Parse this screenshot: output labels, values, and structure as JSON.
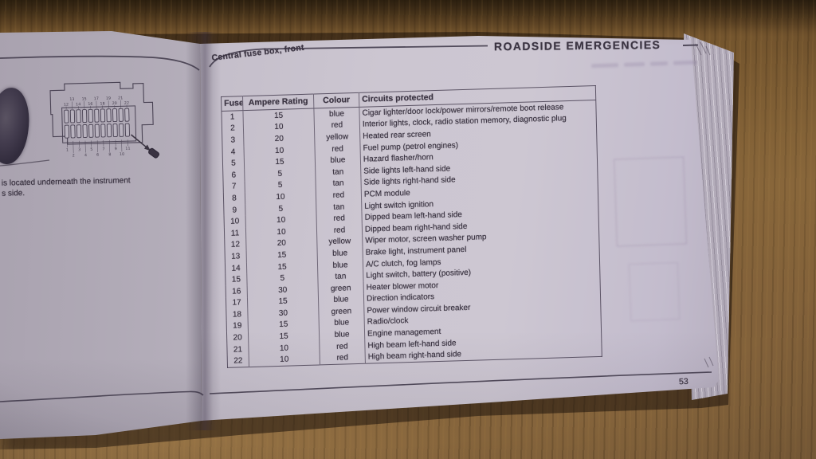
{
  "header": {
    "title": "ROADSIDE EMERGENCIES"
  },
  "page": {
    "section_label": "Central fuse box, front",
    "page_number": "53",
    "left_caption_line1": "is located underneath the instrument",
    "left_caption_line2": "s side."
  },
  "fuse_table": {
    "columns": [
      "Fuse",
      "Ampere Rating",
      "Colour",
      "Circuits protected"
    ],
    "rows": [
      [
        "1",
        "15",
        "blue",
        "Cigar lighter/door lock/power mirrors/remote boot release"
      ],
      [
        "2",
        "10",
        "red",
        "Interior lights, clock, radio station memory, diagnostic plug"
      ],
      [
        "3",
        "20",
        "yellow",
        "Heated rear screen"
      ],
      [
        "4",
        "10",
        "red",
        "Fuel pump (petrol engines)"
      ],
      [
        "5",
        "15",
        "blue",
        "Hazard flasher/horn"
      ],
      [
        "6",
        "5",
        "tan",
        "Side lights left-hand side"
      ],
      [
        "7",
        "5",
        "tan",
        "Side lights right-hand side"
      ],
      [
        "8",
        "10",
        "red",
        "PCM module"
      ],
      [
        "9",
        "5",
        "tan",
        "Light switch ignition"
      ],
      [
        "10",
        "10",
        "red",
        "Dipped beam left-hand side"
      ],
      [
        "11",
        "10",
        "red",
        "Dipped beam right-hand side"
      ],
      [
        "12",
        "20",
        "yellow",
        "Wiper motor, screen washer pump"
      ],
      [
        "13",
        "15",
        "blue",
        "Brake light, instrument panel"
      ],
      [
        "14",
        "15",
        "blue",
        "A/C clutch, fog lamps"
      ],
      [
        "15",
        "5",
        "tan",
        "Light switch, battery (positive)"
      ],
      [
        "16",
        "30",
        "green",
        "Heater blower motor"
      ],
      [
        "17",
        "15",
        "blue",
        "Direction indicators"
      ],
      [
        "18",
        "30",
        "green",
        "Power window circuit breaker"
      ],
      [
        "19",
        "15",
        "blue",
        "Radio/clock"
      ],
      [
        "20",
        "15",
        "blue",
        "Engine management"
      ],
      [
        "21",
        "10",
        "red",
        "High beam left-hand side"
      ],
      [
        "22",
        "10",
        "red",
        "High beam right-hand side"
      ]
    ]
  },
  "diagram": {
    "top_upper_labels": [
      "13",
      "15",
      "17",
      "19",
      "21"
    ],
    "top_lower_labels": [
      "12",
      "14",
      "16",
      "18",
      "20",
      "22"
    ],
    "bottom_upper_labels": [
      "1",
      "3",
      "5",
      "7",
      "9",
      "11"
    ],
    "bottom_lower_labels": [
      "2",
      "4",
      "6",
      "8",
      "10"
    ]
  },
  "colors": {
    "ink": "#3b3442",
    "page": "#c8c2cd",
    "wood": "#7c5c33"
  }
}
